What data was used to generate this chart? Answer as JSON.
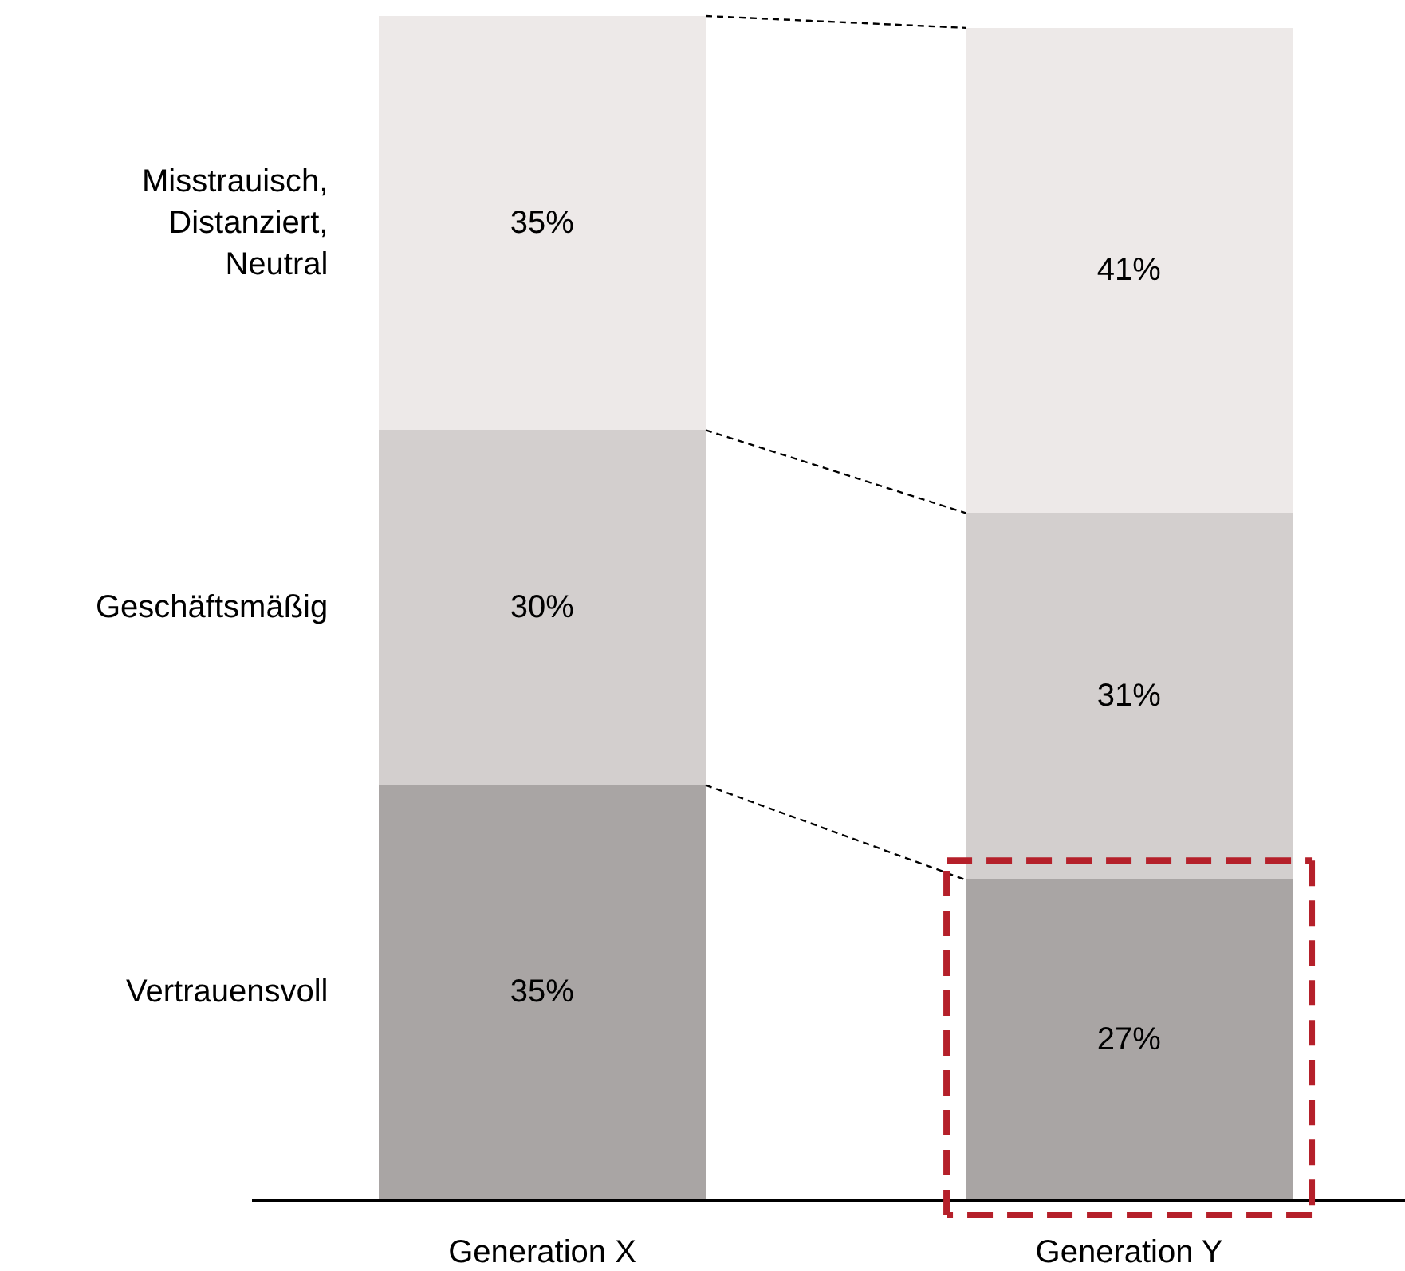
{
  "chart_data": {
    "type": "bar",
    "stacked": true,
    "categories": [
      "Generation X",
      "Generation Y"
    ],
    "series": [
      {
        "name": "Vertrauensvoll",
        "color": "#a9a5a4",
        "values": [
          35,
          27
        ],
        "value_labels": [
          "35%",
          "27%"
        ]
      },
      {
        "name": "Geschäftsmäßig",
        "color": "#d3cfce",
        "values": [
          30,
          31
        ],
        "value_labels": [
          "30%",
          "31%"
        ]
      },
      {
        "name": "Misstrauisch,\nDistanziert,\nNeutral",
        "color": "#ede9e8",
        "values": [
          35,
          41
        ],
        "value_labels": [
          "35%",
          "41%"
        ]
      }
    ],
    "ylim": [
      0,
      100
    ],
    "tick_labels": "x",
    "grid": false,
    "legend": false
  }
}
